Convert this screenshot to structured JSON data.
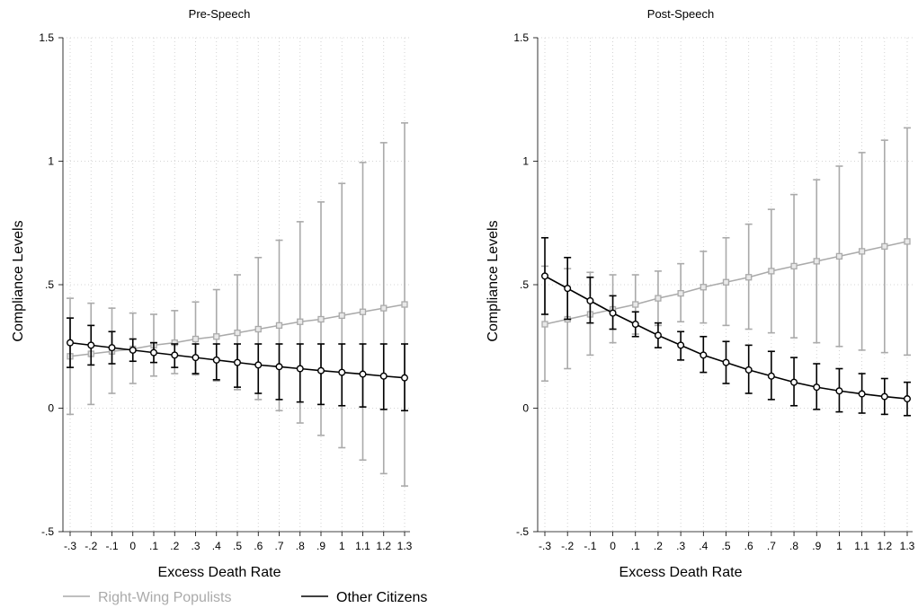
{
  "chart_data": [
    {
      "type": "line",
      "title": "Pre-Speech",
      "xlabel": "Excess Death Rate",
      "ylabel": "Compliance Levels",
      "categories": [
        "-.3",
        "-.2",
        "-.1",
        "0",
        ".1",
        ".2",
        ".3",
        ".4",
        ".5",
        ".6",
        ".7",
        ".8",
        ".9",
        "1",
        "1.1",
        "1.2",
        "1.3"
      ],
      "x": [
        -0.3,
        -0.2,
        -0.1,
        0,
        0.1,
        0.2,
        0.3,
        0.4,
        0.5,
        0.6,
        0.7,
        0.8,
        0.9,
        1.0,
        1.1,
        1.2,
        1.3
      ],
      "yticks": [
        -0.5,
        0,
        0.5,
        1,
        1.5
      ],
      "ytick_labels": [
        "-.5",
        "0",
        ".5",
        "1",
        "1.5"
      ],
      "ylim": [
        -0.5,
        1.5
      ],
      "grid": true,
      "series": [
        {
          "name": "Right-Wing Populists",
          "color": "#aaaaaa",
          "marker": "square",
          "values": [
            0.21,
            0.22,
            0.23,
            0.24,
            0.255,
            0.265,
            0.28,
            0.29,
            0.305,
            0.32,
            0.335,
            0.35,
            0.36,
            0.375,
            0.39,
            0.405,
            0.42
          ],
          "ci_low": [
            -0.025,
            0.015,
            0.06,
            0.1,
            0.13,
            0.14,
            0.135,
            0.11,
            0.075,
            0.035,
            -0.01,
            -0.06,
            -0.11,
            -0.16,
            -0.21,
            -0.265,
            -0.315
          ],
          "ci_high": [
            0.445,
            0.425,
            0.405,
            0.385,
            0.38,
            0.395,
            0.43,
            0.48,
            0.54,
            0.61,
            0.68,
            0.755,
            0.835,
            0.91,
            0.995,
            1.075,
            1.155
          ]
        },
        {
          "name": "Other Citizens",
          "color": "#000000",
          "marker": "circle",
          "values": [
            0.265,
            0.255,
            0.245,
            0.235,
            0.225,
            0.215,
            0.205,
            0.195,
            0.185,
            0.175,
            0.168,
            0.16,
            0.152,
            0.145,
            0.138,
            0.13,
            0.123
          ],
          "ci_low": [
            0.165,
            0.175,
            0.18,
            0.19,
            0.185,
            0.165,
            0.14,
            0.115,
            0.085,
            0.06,
            0.035,
            0.025,
            0.015,
            0.01,
            0.005,
            -0.005,
            -0.01
          ],
          "ci_high": [
            0.365,
            0.335,
            0.31,
            0.28,
            0.265,
            0.26,
            0.26,
            0.26,
            0.26,
            0.26,
            0.26,
            0.26,
            0.26,
            0.26,
            0.26,
            0.26,
            0.26
          ]
        }
      ]
    },
    {
      "type": "line",
      "title": "Post-Speech",
      "xlabel": "Excess Death Rate",
      "ylabel": "Compliance Levels",
      "categories": [
        "-.3",
        "-.2",
        "-.1",
        "0",
        ".1",
        ".2",
        ".3",
        ".4",
        ".5",
        ".6",
        ".7",
        ".8",
        ".9",
        "1",
        "1.1",
        "1.2",
        "1.3"
      ],
      "x": [
        -0.3,
        -0.2,
        -0.1,
        0,
        0.1,
        0.2,
        0.3,
        0.4,
        0.5,
        0.6,
        0.7,
        0.8,
        0.9,
        1.0,
        1.1,
        1.2,
        1.3
      ],
      "yticks": [
        -0.5,
        0,
        0.5,
        1,
        1.5
      ],
      "ytick_labels": [
        "-.5",
        "0",
        ".5",
        "1",
        "1.5"
      ],
      "ylim": [
        -0.5,
        1.5
      ],
      "grid": true,
      "series": [
        {
          "name": "Right-Wing Populists",
          "color": "#aaaaaa",
          "marker": "square",
          "values": [
            0.34,
            0.36,
            0.38,
            0.4,
            0.42,
            0.445,
            0.465,
            0.49,
            0.51,
            0.53,
            0.555,
            0.575,
            0.595,
            0.615,
            0.635,
            0.655,
            0.675
          ],
          "ci_low": [
            0.11,
            0.16,
            0.215,
            0.265,
            0.3,
            0.335,
            0.35,
            0.345,
            0.335,
            0.32,
            0.305,
            0.285,
            0.265,
            0.25,
            0.235,
            0.225,
            0.215
          ],
          "ci_high": [
            0.575,
            0.565,
            0.55,
            0.54,
            0.54,
            0.555,
            0.585,
            0.635,
            0.69,
            0.745,
            0.805,
            0.865,
            0.925,
            0.98,
            1.035,
            1.085,
            1.135
          ]
        },
        {
          "name": "Other Citizens",
          "color": "#000000",
          "marker": "circle",
          "values": [
            0.535,
            0.485,
            0.435,
            0.385,
            0.34,
            0.295,
            0.255,
            0.215,
            0.185,
            0.155,
            0.13,
            0.105,
            0.085,
            0.07,
            0.058,
            0.047,
            0.038
          ],
          "ci_low": [
            0.38,
            0.36,
            0.345,
            0.32,
            0.29,
            0.245,
            0.195,
            0.145,
            0.1,
            0.06,
            0.035,
            0.01,
            -0.005,
            -0.015,
            -0.02,
            -0.025,
            -0.03
          ],
          "ci_high": [
            0.69,
            0.61,
            0.53,
            0.455,
            0.39,
            0.345,
            0.31,
            0.29,
            0.27,
            0.255,
            0.23,
            0.205,
            0.18,
            0.16,
            0.14,
            0.12,
            0.105
          ]
        }
      ]
    }
  ],
  "legend": {
    "position": "bottom-left",
    "items": [
      {
        "label": "Right-Wing Populists",
        "color": "#aaaaaa"
      },
      {
        "label": "Other Citizens",
        "color": "#000000"
      }
    ]
  }
}
